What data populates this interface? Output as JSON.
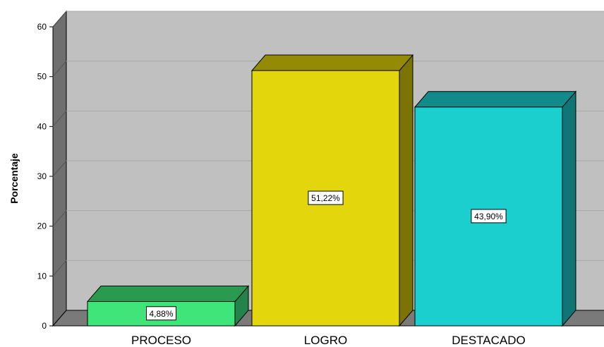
{
  "chart_data": {
    "type": "bar",
    "categories": [
      "PROCESO",
      "LOGRO",
      "DESTACADO"
    ],
    "values": [
      4.88,
      51.22,
      43.9
    ],
    "data_labels": [
      "4,88%",
      "51,22%",
      "43,90%"
    ],
    "title": "",
    "xlabel": "",
    "ylabel": "Porcentaje",
    "ylim": [
      0,
      60
    ],
    "yticks": [
      0,
      10,
      20,
      30,
      40,
      50,
      60
    ],
    "grid": true,
    "three_d": true,
    "colors": {
      "bars_front": [
        "#40e57a",
        "#e3d60c",
        "#1ccfcf"
      ],
      "bars_top": [
        "#2a9a50",
        "#958a04",
        "#128a8a"
      ],
      "bars_side": [
        "#23834a",
        "#7c7305",
        "#0f7575"
      ],
      "wall_back": "#c0c0c0",
      "wall_side": "#6f6f6f",
      "floor": "#7a7a7a",
      "gridline": "#a8a8a8"
    }
  }
}
